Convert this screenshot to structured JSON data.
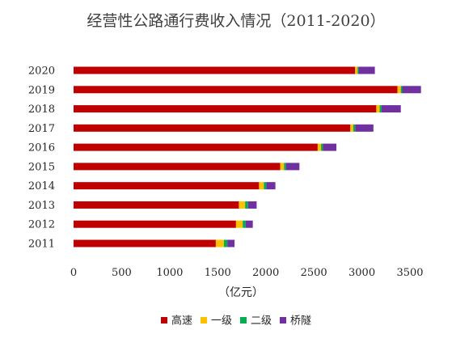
{
  "chart_data": {
    "type": "bar",
    "orientation": "horizontal",
    "stacked": true,
    "title": "经营性公路通行费收入情况（2011-2020）",
    "xlabel": "（亿元）",
    "ylabel": "",
    "xlim": [
      0,
      3500
    ],
    "xticks": [
      0,
      500,
      1000,
      1500,
      2000,
      2500,
      3000,
      3500
    ],
    "categories": [
      "2011",
      "2012",
      "2013",
      "2014",
      "2015",
      "2016",
      "2017",
      "2018",
      "2019",
      "2020"
    ],
    "legend_position": "bottom",
    "grid": false,
    "series": [
      {
        "name": "高速",
        "color": "#c00000",
        "values": [
          1480,
          1690,
          1720,
          1930,
          2150,
          2540,
          2880,
          3150,
          3370,
          2930
        ]
      },
      {
        "name": "一级",
        "color": "#ffc000",
        "values": [
          85,
          70,
          65,
          50,
          40,
          35,
          30,
          35,
          35,
          25
        ]
      },
      {
        "name": "二级",
        "color": "#00b050",
        "values": [
          35,
          30,
          30,
          25,
          20,
          20,
          20,
          20,
          15,
          10
        ]
      },
      {
        "name": "桥隧",
        "color": "#7030a0",
        "values": [
          75,
          75,
          90,
          95,
          140,
          140,
          190,
          200,
          195,
          170
        ]
      }
    ]
  }
}
